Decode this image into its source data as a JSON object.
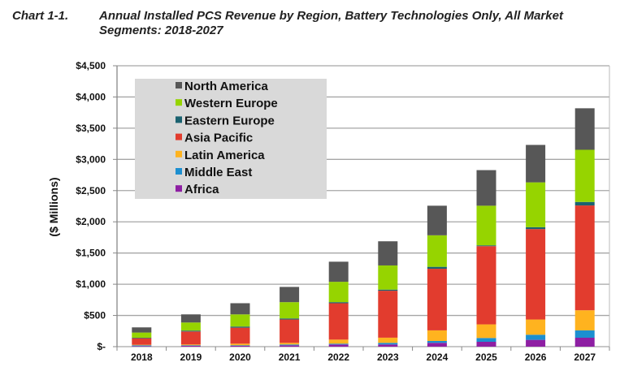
{
  "header": {
    "chart_number": "Chart 1-1.",
    "title_line1": "Annual Installed PCS Revenue by Region, Battery Technologies Only, All Market",
    "title_line2": "Segments: 2018-2027"
  },
  "chart_data": {
    "type": "bar",
    "stacked": true,
    "title": "Annual Installed PCS Revenue by Region, Battery Technologies Only, All Market Segments: 2018-2027",
    "xlabel": "",
    "ylabel": "($ Millions)",
    "ylim": [
      0,
      4500
    ],
    "yticks": [
      0,
      500,
      1000,
      1500,
      2000,
      2500,
      3000,
      3500,
      4000,
      4500
    ],
    "ytick_labels": [
      "$-",
      "$500",
      "$1,000",
      "$1,500",
      "$2,000",
      "$2,500",
      "$3,000",
      "$3,500",
      "$4,000",
      "$4,500"
    ],
    "grid": true,
    "legend_position": "top-left",
    "categories": [
      "2018",
      "2019",
      "2020",
      "2021",
      "2022",
      "2023",
      "2024",
      "2025",
      "2026",
      "2027"
    ],
    "series": [
      {
        "name": "Africa",
        "color": "#8e1fa3",
        "values": [
          9,
          13,
          13,
          22,
          35,
          35,
          61,
          78,
          109,
          143
        ]
      },
      {
        "name": "Middle East",
        "color": "#1c8fd0",
        "values": [
          13,
          9,
          9,
          13,
          13,
          26,
          30,
          61,
          82,
          118
        ]
      },
      {
        "name": "Latin America",
        "color": "#ffb31f",
        "values": [
          8,
          13,
          26,
          26,
          65,
          83,
          170,
          218,
          244,
          322
        ]
      },
      {
        "name": "Asia Pacific",
        "color": "#e23c2e",
        "values": [
          105,
          208,
          256,
          374,
          583,
          752,
          987,
          1253,
          1449,
          1679
        ]
      },
      {
        "name": "Eastern Europe",
        "color": "#1b6270",
        "values": [
          8,
          14,
          18,
          17,
          17,
          18,
          31,
          13,
          30,
          56
        ]
      },
      {
        "name": "Western Europe",
        "color": "#96d400",
        "values": [
          83,
          130,
          195,
          261,
          326,
          387,
          505,
          635,
          718,
          836
        ]
      },
      {
        "name": "North America",
        "color": "#575757",
        "values": [
          83,
          130,
          179,
          244,
          322,
          387,
          474,
          570,
          600,
          665
        ]
      }
    ],
    "legend_order": [
      "North America",
      "Western Europe",
      "Eastern Europe",
      "Asia Pacific",
      "Latin America",
      "Middle East",
      "Africa"
    ]
  }
}
